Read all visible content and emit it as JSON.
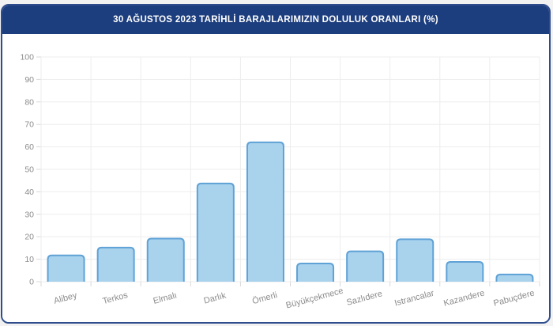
{
  "header": {
    "title": "30 AĞUSTOS 2023 TARİHLİ BARAJLARIMIZIN DOLULUK ORANLARI (%)",
    "background_color": "#1d3e7e",
    "text_color": "#ffffff"
  },
  "card": {
    "border_color": "#2f4d8d",
    "background_color": "#ffffff"
  },
  "chart_data": {
    "type": "bar",
    "title": "30 AĞUSTOS 2023 TARİHLİ BARAJLARIMIZIN DOLULUK ORANLARI (%)",
    "categories": [
      "Alibey",
      "Terkos",
      "Elmalı",
      "Darlık",
      "Ömerli",
      "Büyükçekmece",
      "Sazlıdere",
      "Istrancalar",
      "Kazandere",
      "Pabuçdere"
    ],
    "values": [
      11.7,
      15.2,
      19.2,
      43.7,
      62,
      8.1,
      13.5,
      18.9,
      8.8,
      3.2
    ],
    "xlabel": "",
    "ylabel": "",
    "ylim": [
      0,
      100
    ],
    "ytick_step": 10,
    "ytick_labels": [
      "0",
      "10",
      "20",
      "30",
      "40",
      "50",
      "60",
      "70",
      "80",
      "90",
      "100"
    ],
    "grid": true,
    "legend": false,
    "x_label_rotation_deg": -15,
    "bar_fill_color": "#a9d2ed",
    "bar_border_color": "#5fa2d6",
    "grid_color": "#ededed",
    "tick_color": "#d9d9d9",
    "axis_label_color": "#8c8c8c"
  }
}
